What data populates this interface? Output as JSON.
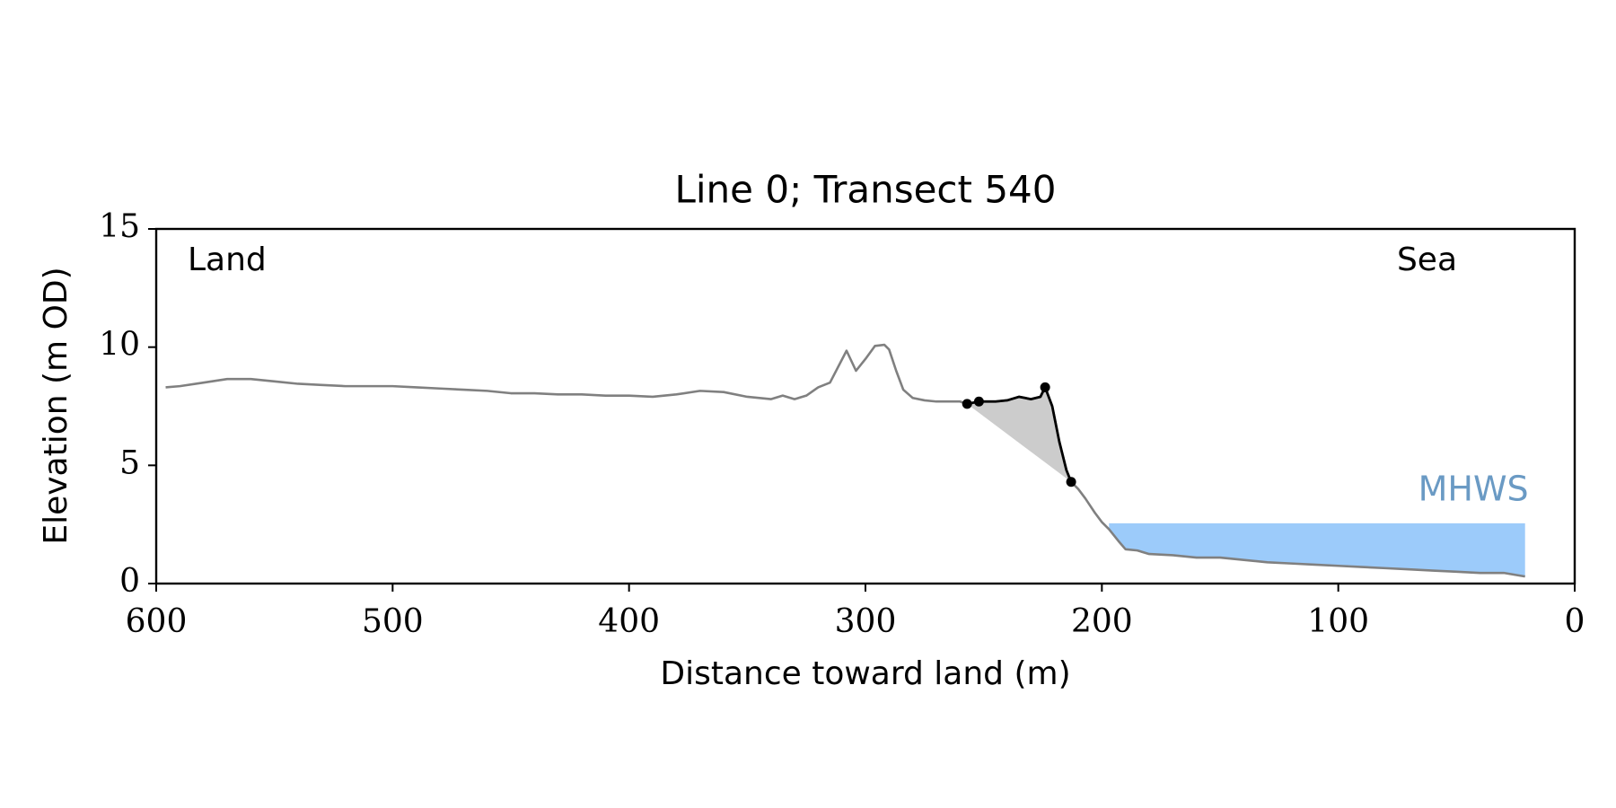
{
  "chart_data": {
    "type": "line",
    "title": "Line 0; Transect 540",
    "xlabel": "Distance toward land (m)",
    "ylabel": "Elevation (m OD)",
    "xlim": [
      600,
      0
    ],
    "ylim": [
      0,
      15
    ],
    "xticks": [
      600,
      500,
      400,
      300,
      200,
      100,
      0
    ],
    "yticks": [
      0,
      5,
      10,
      15
    ],
    "annotations": {
      "land": "Land",
      "sea": "Sea"
    },
    "profile": {
      "color": "#808080",
      "x": [
        596,
        590,
        580,
        570,
        560,
        550,
        540,
        530,
        520,
        510,
        500,
        490,
        480,
        470,
        460,
        450,
        440,
        430,
        420,
        410,
        400,
        390,
        380,
        370,
        360,
        350,
        340,
        335,
        330,
        325,
        320,
        315,
        308,
        304,
        300,
        296,
        292,
        290,
        287,
        284,
        280,
        275,
        270,
        265,
        260,
        257,
        252,
        245,
        240,
        235,
        230,
        226,
        224,
        221,
        218,
        215,
        213,
        210,
        207,
        203,
        200,
        197,
        193,
        190,
        185,
        180,
        170,
        160,
        150,
        140,
        130,
        120,
        110,
        100,
        90,
        80,
        70,
        60,
        50,
        40,
        30,
        21
      ],
      "values": [
        8.3,
        8.35,
        8.5,
        8.65,
        8.65,
        8.55,
        8.45,
        8.4,
        8.35,
        8.35,
        8.35,
        8.3,
        8.25,
        8.2,
        8.15,
        8.05,
        8.05,
        8.0,
        8.0,
        7.95,
        7.95,
        7.9,
        8.0,
        8.15,
        8.1,
        7.9,
        7.8,
        7.95,
        7.8,
        7.95,
        8.3,
        8.5,
        9.85,
        9.0,
        9.5,
        10.05,
        10.1,
        9.9,
        9.0,
        8.2,
        7.85,
        7.75,
        7.7,
        7.7,
        7.7,
        7.6,
        7.7,
        7.7,
        7.75,
        7.9,
        7.8,
        7.9,
        8.3,
        7.5,
        6.0,
        4.8,
        4.3,
        4.0,
        3.6,
        3.0,
        2.6,
        2.3,
        1.8,
        1.45,
        1.4,
        1.25,
        1.2,
        1.1,
        1.1,
        1.0,
        0.9,
        0.85,
        0.8,
        0.75,
        0.7,
        0.65,
        0.6,
        0.55,
        0.5,
        0.45,
        0.45,
        0.3
      ]
    },
    "cliff": {
      "color": "#000000",
      "fill": "#cccccc",
      "x": [
        257,
        252,
        245,
        240,
        235,
        230,
        226,
        224,
        221,
        218,
        215,
        213
      ],
      "values": [
        7.6,
        7.7,
        7.7,
        7.75,
        7.9,
        7.8,
        7.9,
        8.3,
        7.5,
        6.0,
        4.8,
        4.3
      ]
    },
    "points": {
      "color": "#000000",
      "x": [
        257,
        252,
        224,
        213
      ],
      "values": [
        7.6,
        7.7,
        8.3,
        4.3
      ]
    },
    "mhws": {
      "label": "MHWS",
      "value": 2.55,
      "x": [
        197,
        21
      ],
      "color": "#9ccbfa",
      "label_color": "#6a9ac4"
    }
  }
}
